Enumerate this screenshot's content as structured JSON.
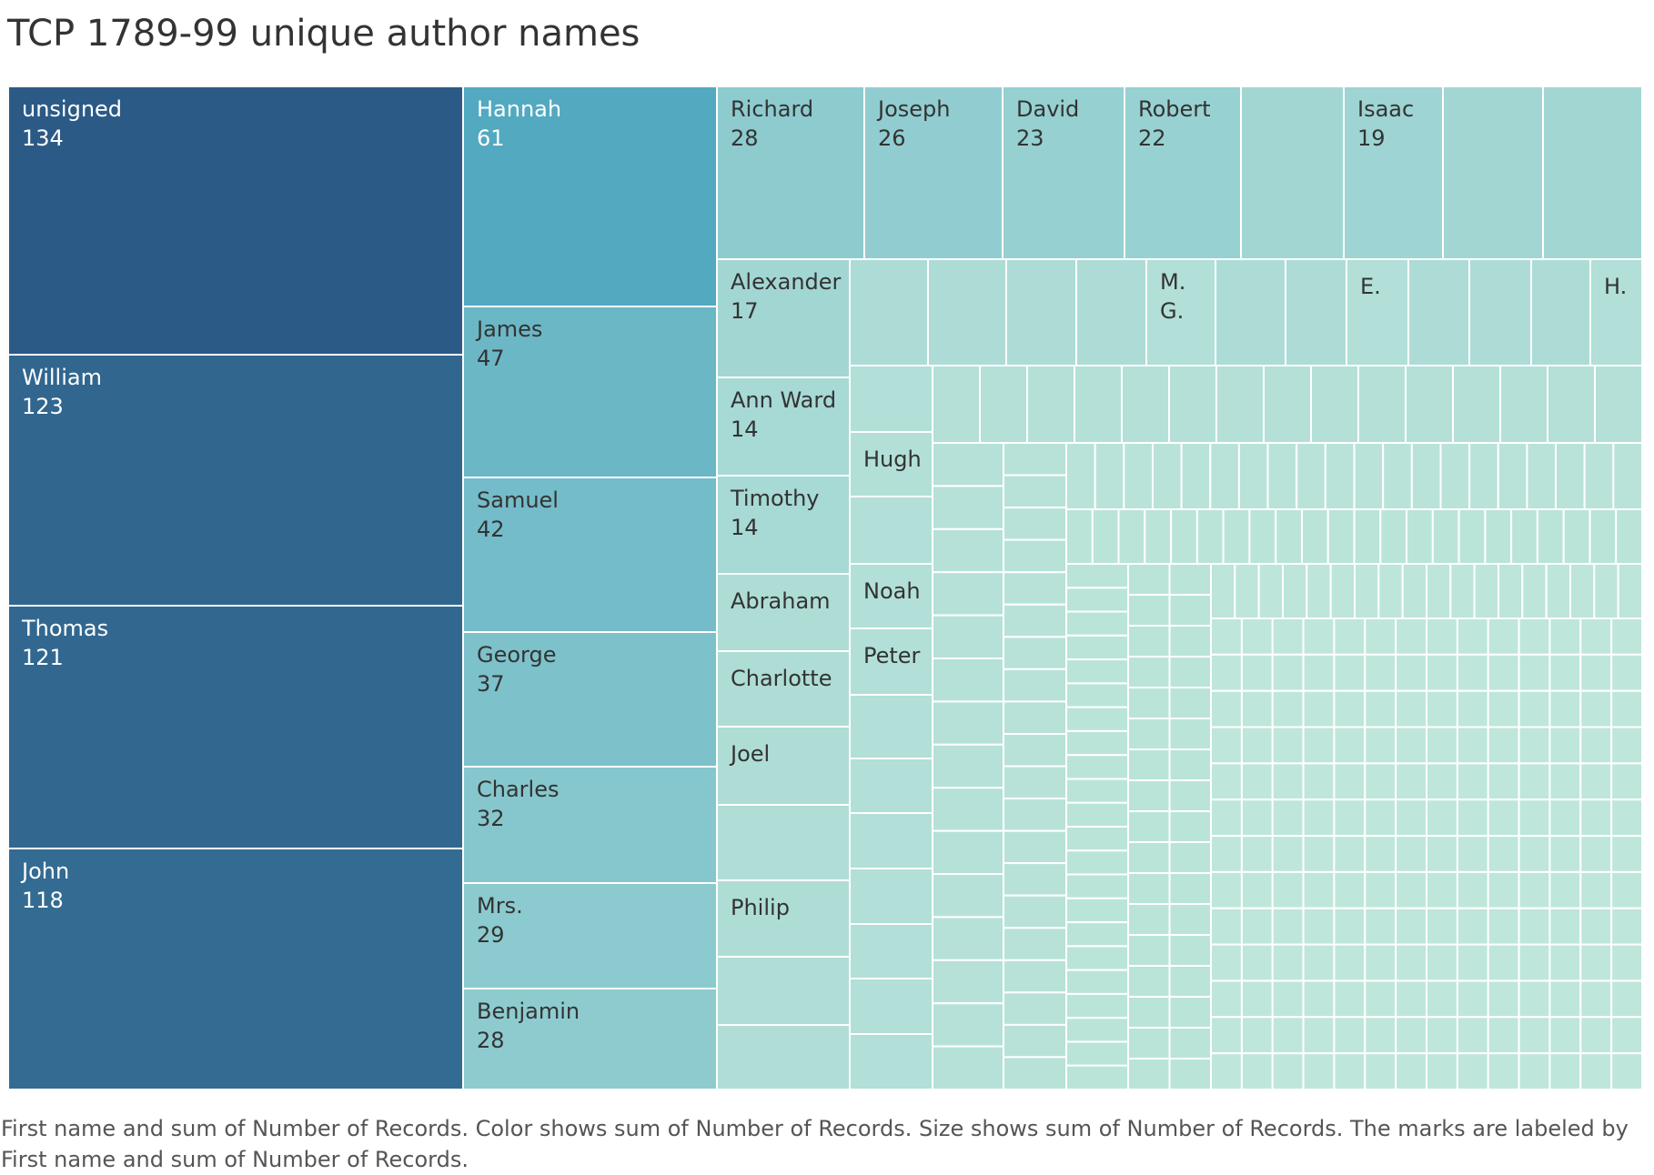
{
  "title": "TCP 1789-99 unique author names",
  "caption": "First name and sum of Number of Records.  Color shows sum of Number of Records.  Size shows sum of Number of Records.  The marks are labeled by First name and sum of Number of Records.",
  "colors": {
    "high": "#2b5a86",
    "mid_high": "#52a9c0",
    "mid": "#8ecbcf",
    "low": "#bfe6da",
    "border": "#ffffff",
    "label_dark_bg": "#ffffff",
    "label_light_bg": "#333333"
  },
  "chart_data": {
    "type": "treemap",
    "title": "TCP 1789-99 unique author names",
    "color_range": [
      1,
      134
    ],
    "labeled": [
      {
        "name": "unsigned",
        "value": 134
      },
      {
        "name": "William",
        "value": 123
      },
      {
        "name": "Thomas",
        "value": 121
      },
      {
        "name": "John",
        "value": 118
      },
      {
        "name": "Hannah",
        "value": 61
      },
      {
        "name": "James",
        "value": 47
      },
      {
        "name": "Samuel",
        "value": 42
      },
      {
        "name": "George",
        "value": 37
      },
      {
        "name": "Charles",
        "value": 32
      },
      {
        "name": "Mrs.",
        "value": 29
      },
      {
        "name": "Benjamin",
        "value": 28
      },
      {
        "name": "Richard",
        "value": 28
      },
      {
        "name": "Joseph",
        "value": 26
      },
      {
        "name": "David",
        "value": 23
      },
      {
        "name": "Robert",
        "value": 22
      },
      {
        "name": "Isaac",
        "value": 19
      },
      {
        "name": "Alexander",
        "value": 17
      },
      {
        "name": "Ann Ward",
        "value": 14
      },
      {
        "name": "Timothy",
        "value": 14
      }
    ],
    "name_only": [
      "Abraham",
      "Charlotte",
      "Joel",
      "Philip",
      "Hugh",
      "Noah",
      "Peter",
      "M. G.",
      "E.",
      "H."
    ]
  }
}
